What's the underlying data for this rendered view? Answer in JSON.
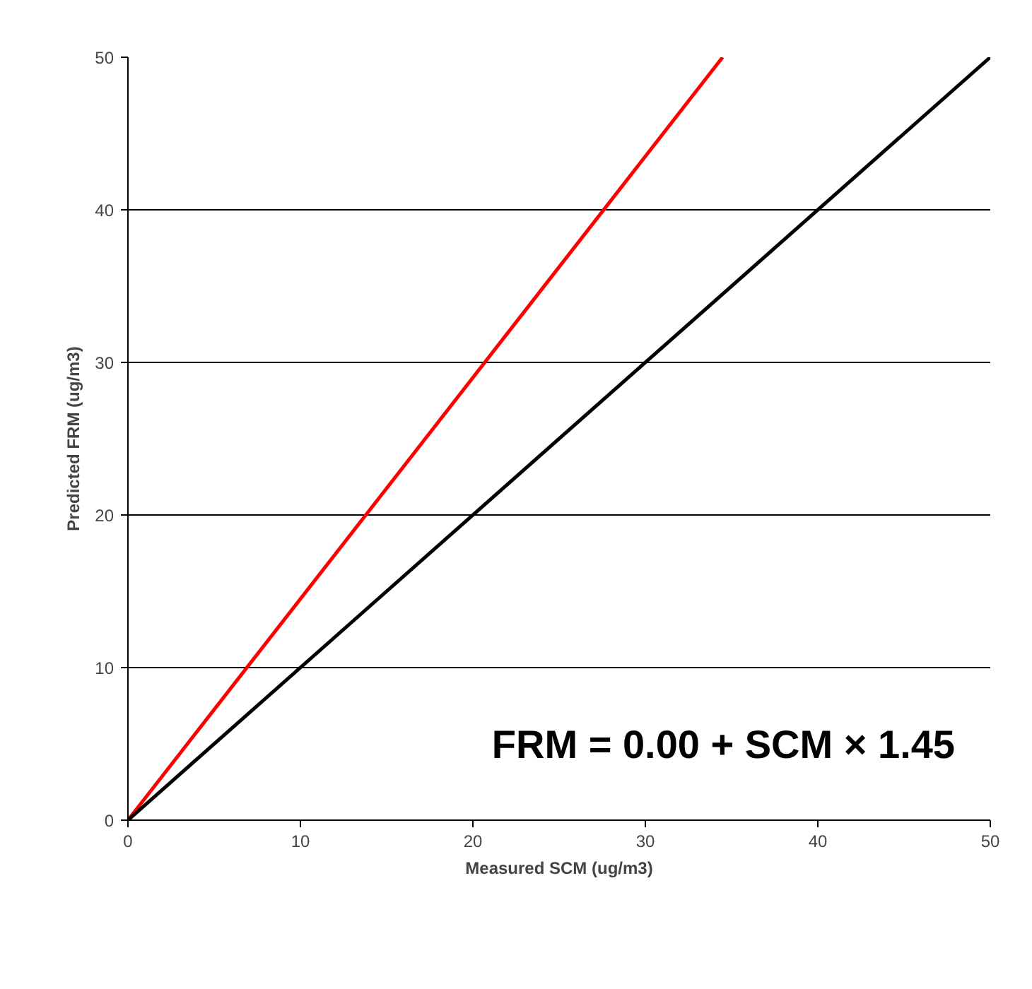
{
  "chart_data": {
    "type": "line",
    "xlabel": "Measured SCM (ug/m3)",
    "ylabel": "Predicted FRM (ug/m3)",
    "xlim": [
      0,
      50
    ],
    "ylim": [
      0,
      50
    ],
    "xticks": [
      0,
      10,
      20,
      30,
      40,
      50
    ],
    "yticks": [
      0,
      10,
      20,
      30,
      40,
      50
    ],
    "grid": "y",
    "line_style": "solid",
    "series": [
      {
        "color": "#ff0000",
        "x": [
          0,
          34.48
        ],
        "values": [
          0,
          50
        ]
      },
      {
        "color": "#000000",
        "x": [
          0,
          50
        ],
        "values": [
          0,
          50
        ]
      }
    ],
    "annotations": [
      "FRM = 0.00 + SCM × 1.45"
    ]
  }
}
